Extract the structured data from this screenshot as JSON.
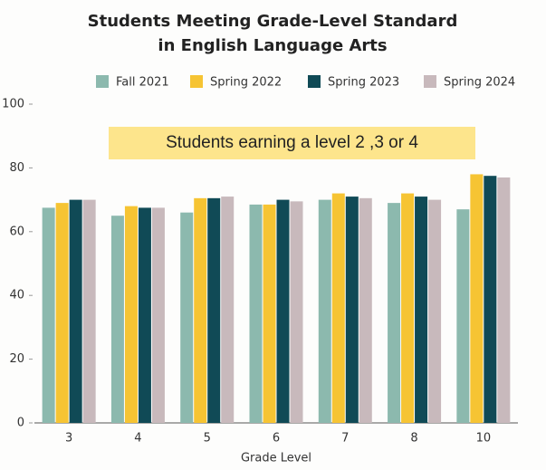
{
  "chart_data": {
    "type": "bar",
    "title": "Students Meeting Grade-Level Standard in English Language Arts",
    "annotation": "Students earning a level 2 ,3 or 4",
    "x_label": "Grade Level",
    "categories": [
      "3",
      "4",
      "5",
      "6",
      "7",
      "8",
      "10"
    ],
    "series": [
      {
        "name": "Fall 2021",
        "color": "#8cb9ae",
        "values": [
          67.5,
          65,
          66,
          68.5,
          70,
          69,
          67
        ]
      },
      {
        "name": "Spring 2022",
        "color": "#f6c433",
        "values": [
          69,
          68,
          70.5,
          68.5,
          72,
          72,
          78
        ]
      },
      {
        "name": "Spring 2023",
        "color": "#104a56",
        "values": [
          70,
          67.5,
          70.5,
          70,
          71,
          71,
          77.5
        ]
      },
      {
        "name": "Spring 2024",
        "color": "#c8b9bc",
        "values": [
          70,
          67.5,
          71,
          69.5,
          70.5,
          70,
          77
        ]
      }
    ],
    "ylim": [
      0,
      100
    ],
    "yticks": [
      0,
      20,
      40,
      60,
      80,
      100
    ],
    "grid": false
  }
}
